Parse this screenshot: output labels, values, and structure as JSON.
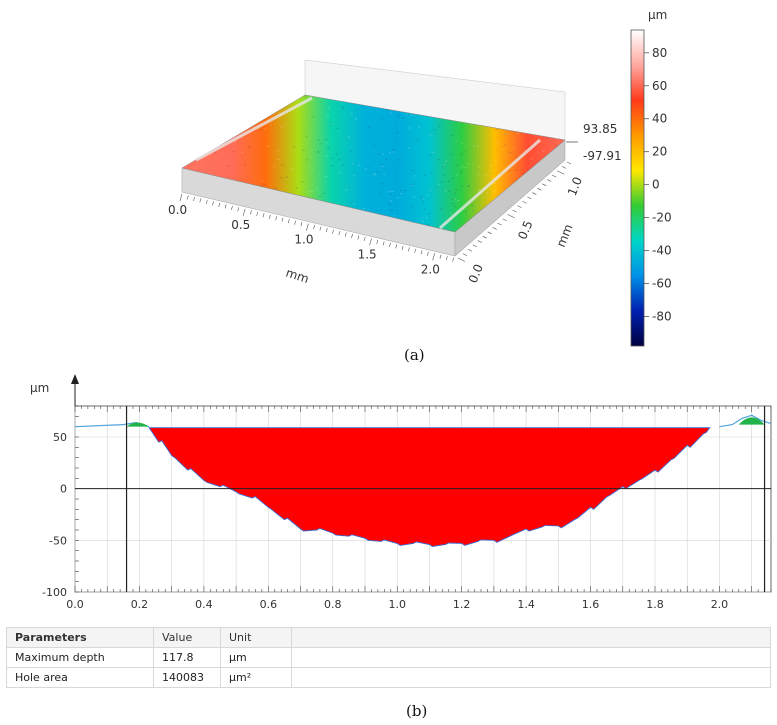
{
  "chart_data": [
    {
      "type": "surface-3d",
      "title": "",
      "axes": {
        "x": {
          "label": "mm",
          "ticks": [
            "0.0",
            "0.5",
            "1.0",
            "1.5",
            "2.0"
          ]
        },
        "y": {
          "label": "mm",
          "ticks": [
            "0.0",
            "0.5",
            "1.0"
          ]
        },
        "z": {
          "max_label": "93.85",
          "min_label": "-97.91"
        }
      },
      "colorbar": {
        "unit": "µm",
        "ticks": [
          "80",
          "60",
          "40",
          "20",
          "0",
          "-20",
          "-40",
          "-60",
          "-80"
        ],
        "tick_values": [
          80,
          60,
          40,
          20,
          0,
          -20,
          -40,
          -60,
          -80
        ],
        "range": [
          -97.91,
          93.85
        ],
        "colors": [
          "#ffffff",
          "#ffa8a0",
          "#ff3a1a",
          "#ff9900",
          "#ffe800",
          "#33cc33",
          "#00d6c8",
          "#0090e8",
          "#0020b0",
          "#000040"
        ]
      },
      "surface_profile": {
        "x": [
          0.0,
          0.2,
          0.4,
          0.6,
          0.8,
          1.0,
          1.2,
          1.4,
          1.6,
          1.8,
          2.0,
          2.2
        ],
        "z": [
          62,
          61,
          40,
          0,
          -30,
          -45,
          -47,
          -40,
          -15,
          20,
          55,
          60
        ]
      },
      "caption": "(a)"
    },
    {
      "type": "area",
      "y_unit": "µm",
      "xlim": [
        0.0,
        2.16
      ],
      "ylim": [
        -100,
        80
      ],
      "x_ticks": [
        "0.0",
        "0.2",
        "0.4",
        "0.6",
        "0.8",
        "1.0",
        "1.2",
        "1.4",
        "1.6",
        "1.8",
        "2.0"
      ],
      "y_ticks": [
        "50",
        "0",
        "-50",
        "-100"
      ],
      "y_tick_values": [
        50,
        0,
        -50,
        -100
      ],
      "grid": true,
      "cursor_x": [
        0.16,
        2.14
      ],
      "fill_level": 59,
      "profile": {
        "x": [
          0.0,
          0.15,
          0.19,
          0.23,
          0.26,
          0.3,
          0.35,
          0.4,
          0.45,
          0.5,
          0.55,
          0.6,
          0.65,
          0.7,
          0.75,
          0.8,
          0.85,
          0.9,
          0.95,
          1.0,
          1.05,
          1.1,
          1.15,
          1.2,
          1.25,
          1.3,
          1.35,
          1.4,
          1.45,
          1.5,
          1.55,
          1.6,
          1.65,
          1.7,
          1.75,
          1.8,
          1.85,
          1.9,
          1.95,
          2.0,
          2.04,
          2.07,
          2.1,
          2.13,
          2.16
        ],
        "y": [
          60,
          62,
          64,
          60,
          45,
          32,
          18,
          8,
          2,
          -3,
          -9,
          -18,
          -30,
          -39,
          -40,
          -43,
          -46,
          -48,
          -51,
          -53,
          -53,
          -54,
          -54,
          -53,
          -51,
          -50,
          -46,
          -39,
          -37,
          -36,
          -30,
          -18,
          -8,
          2,
          8,
          18,
          28,
          42,
          53,
          60,
          62,
          68,
          71,
          66,
          63
        ],
        "line_colors": {
          "surface": "#4fa3d9",
          "rim": "#22b24c"
        },
        "fill_color": "#ff0000"
      },
      "caption": "(b)"
    }
  ],
  "parameters_table": {
    "headers": [
      "Parameters",
      "Value",
      "Unit"
    ],
    "rows": [
      [
        "Maximum depth",
        "117.8",
        "µm"
      ],
      [
        "Hole area",
        "140083",
        "µm²"
      ]
    ]
  }
}
